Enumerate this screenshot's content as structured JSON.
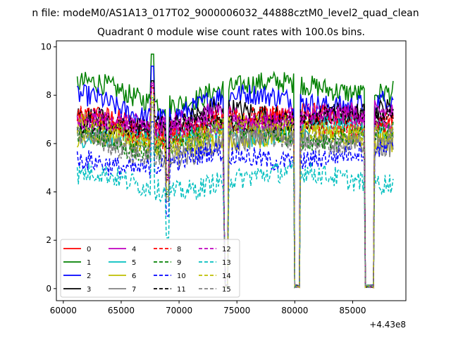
{
  "figure": {
    "suptitle": "n file: modeM0/AS1A13_017T02_9000006032_44888cztM0_level2_quad_clean",
    "offset_text": "+4.43e8"
  },
  "chart_data": {
    "type": "line",
    "title": "Quadrant 0 module wise count rates with 100.0s bins.",
    "xlabel": "",
    "ylabel": "",
    "xlim": [
      59400,
      89600
    ],
    "ylim": [
      -0.5,
      10.25
    ],
    "x_ticks": [
      60000,
      65000,
      70000,
      75000,
      80000,
      85000
    ],
    "y_ticks": [
      0,
      2,
      4,
      6,
      8,
      10
    ],
    "x_offset": 443000000,
    "legend_position": "lower-left",
    "grid": false,
    "x_range_data": [
      61200,
      88500
    ],
    "gaps": [
      [
        74000,
        74200
      ],
      [
        80000,
        80400
      ],
      [
        86100,
        86800
      ]
    ],
    "spikes": [
      67700,
      69000
    ],
    "series": [
      {
        "name": "0",
        "color": "#ff0000",
        "dash": "solid",
        "level": 7.0
      },
      {
        "name": "1",
        "color": "#008000",
        "dash": "solid",
        "level": 8.3
      },
      {
        "name": "2",
        "color": "#0000ff",
        "dash": "solid",
        "level": 7.8
      },
      {
        "name": "3",
        "color": "#000000",
        "dash": "solid",
        "level": 7.2
      },
      {
        "name": "4",
        "color": "#bf00bf",
        "dash": "solid",
        "level": 7.1
      },
      {
        "name": "5",
        "color": "#00bfbf",
        "dash": "solid",
        "level": 6.5
      },
      {
        "name": "6",
        "color": "#bfbf00",
        "dash": "solid",
        "level": 6.3
      },
      {
        "name": "7",
        "color": "#808080",
        "dash": "solid",
        "level": 6.1
      },
      {
        "name": "8",
        "color": "#ff0000",
        "dash": "dashed",
        "level": 6.9
      },
      {
        "name": "9",
        "color": "#008000",
        "dash": "dashed",
        "level": 6.4
      },
      {
        "name": "10",
        "color": "#0000ff",
        "dash": "dashed",
        "level": 5.5
      },
      {
        "name": "11",
        "color": "#000000",
        "dash": "dashed",
        "level": 7.0
      },
      {
        "name": "12",
        "color": "#bf00bf",
        "dash": "dashed",
        "level": 7.0
      },
      {
        "name": "13",
        "color": "#00bfbf",
        "dash": "dashed",
        "level": 4.6
      },
      {
        "name": "14",
        "color": "#bfbf00",
        "dash": "dashed",
        "level": 6.6
      },
      {
        "name": "15",
        "color": "#808080",
        "dash": "dashed",
        "level": 6.2
      }
    ]
  }
}
